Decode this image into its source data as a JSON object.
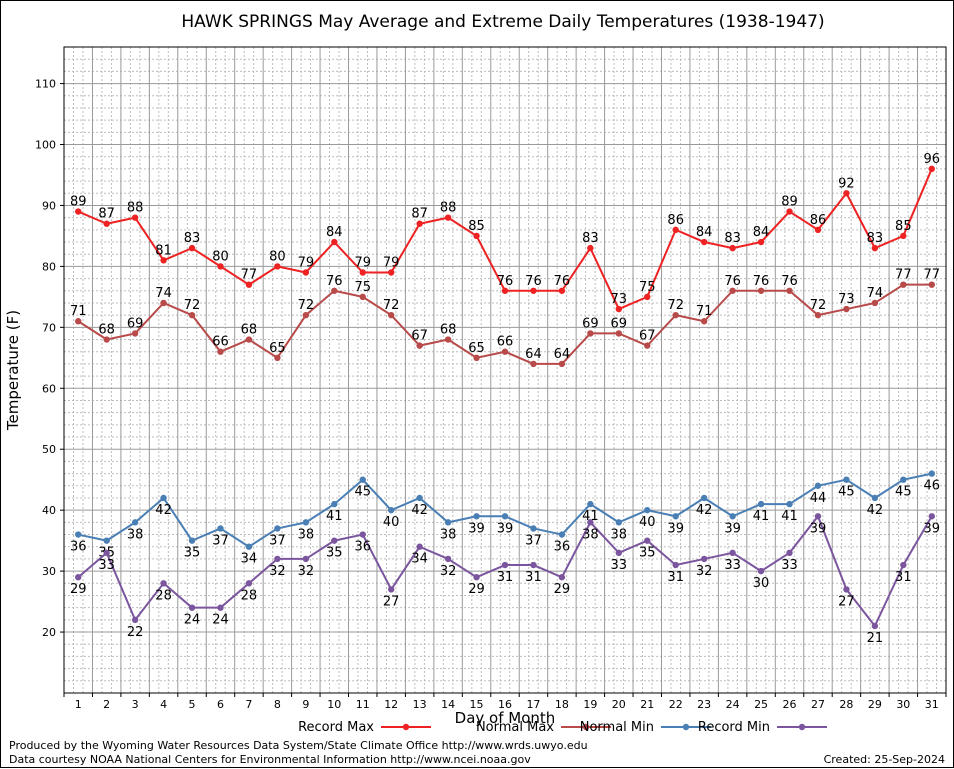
{
  "chart_data": {
    "type": "line",
    "title": "HAWK SPRINGS May Average and Extreme Daily Temperatures (1938-1947)",
    "xlabel": "Day of Month",
    "ylabel": "Temperature (F)",
    "ylim": [
      10,
      116
    ],
    "yticks": [
      20,
      30,
      40,
      50,
      60,
      70,
      80,
      90,
      100,
      110
    ],
    "x": [
      1,
      2,
      3,
      4,
      5,
      6,
      7,
      8,
      9,
      10,
      11,
      12,
      13,
      14,
      15,
      16,
      17,
      18,
      19,
      20,
      21,
      22,
      23,
      24,
      25,
      26,
      27,
      28,
      29,
      30,
      31
    ],
    "grid": true,
    "legend_position": "bottom",
    "series": [
      {
        "name": "Record Max",
        "color": "#ee2222",
        "label_pos": "above",
        "values": [
          89,
          87,
          88,
          81,
          83,
          80,
          77,
          80,
          79,
          84,
          79,
          79,
          87,
          88,
          85,
          76,
          76,
          76,
          83,
          73,
          75,
          86,
          84,
          83,
          84,
          89,
          86,
          92,
          83,
          85,
          96
        ]
      },
      {
        "name": "Normal Max",
        "color": "#b84a4a",
        "label_pos": "above",
        "values": [
          71,
          68,
          69,
          74,
          72,
          66,
          68,
          65,
          72,
          76,
          75,
          72,
          67,
          68,
          65,
          66,
          64,
          64,
          69,
          69,
          67,
          72,
          71,
          76,
          76,
          76,
          72,
          73,
          74,
          77,
          77
        ]
      },
      {
        "name": "Normal Min",
        "color": "#4a7fb5",
        "label_pos": "below",
        "values": [
          36,
          35,
          38,
          42,
          35,
          37,
          34,
          37,
          38,
          41,
          45,
          40,
          42,
          38,
          39,
          39,
          37,
          36,
          41,
          38,
          40,
          39,
          42,
          39,
          41,
          41,
          44,
          45,
          42,
          45,
          46
        ]
      },
      {
        "name": "Record Min",
        "color": "#7b559e",
        "label_pos": "below",
        "values": [
          29,
          33,
          22,
          28,
          24,
          24,
          28,
          32,
          32,
          35,
          36,
          27,
          34,
          32,
          29,
          31,
          31,
          29,
          38,
          33,
          35,
          31,
          32,
          33,
          30,
          33,
          39,
          27,
          21,
          31,
          39
        ]
      }
    ]
  },
  "footer": {
    "line1": "Produced by the Wyoming Water Resources Data System/State Climate Office http://www.wrds.uwyo.edu",
    "line2": "Data courtesy NOAA National Centers for Environmental Information http://www.ncei.noaa.gov",
    "created": "Created: 25-Sep-2024"
  }
}
